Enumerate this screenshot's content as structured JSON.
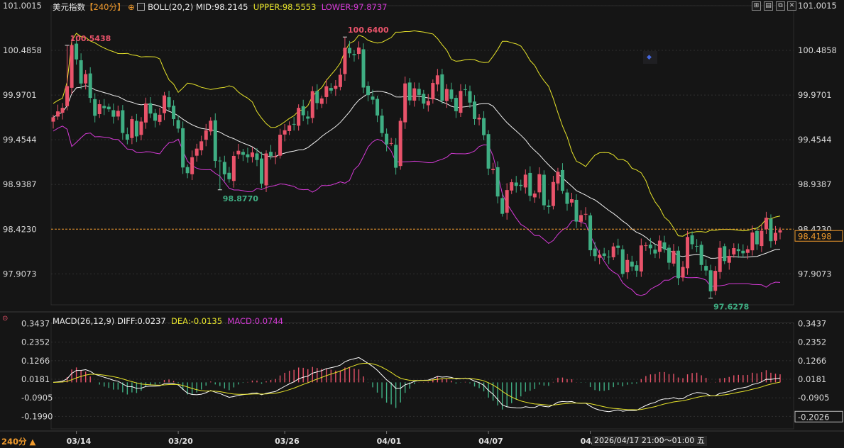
{
  "header": {
    "symbol": "美元指数",
    "period": "【240分】",
    "indicator": "BOLL(20,2)",
    "mid_label": "MID:98.2145",
    "upper_label": "UPPER:98.5553",
    "lower_label": "LOWER:97.8737"
  },
  "macd_header": {
    "name": "MACD(26,12,9)",
    "diff_label": "DIFF:0.0237",
    "dea_label": "DEA:-0.0135",
    "macd_label": "MACD:0.0744"
  },
  "footer": {
    "period_button": "240分",
    "crosshair_time": "2026/04/17 21:00～01:00 五"
  },
  "colors": {
    "up": "#e9536a",
    "down": "#3fae83",
    "mid": "#f0f0f0",
    "upper": "#e6e32a",
    "lower": "#d53ad6",
    "diff": "#ffffff",
    "dea": "#e6e32a",
    "price_line": "#f09a2c",
    "accent": "#f09a2c"
  },
  "chart_data": {
    "type": "candlestick",
    "price_axis": {
      "ticks": [
        "101.0015",
        "100.4858",
        "99.9701",
        "99.4544",
        "98.9387",
        "98.4230",
        "97.9073"
      ],
      "range": [
        97.55,
        101.0015
      ]
    },
    "current_price": "98.4198",
    "reference_price": 98.423,
    "date_labels": [
      "03/14",
      "03/20",
      "03/26",
      "04/01",
      "04/07",
      "04/"
    ],
    "annotations": [
      {
        "text": "100.5438",
        "value": 100.5438,
        "index": 3,
        "kind": "high"
      },
      {
        "text": "98.8770",
        "value": 98.877,
        "index": 36,
        "kind": "low"
      },
      {
        "text": "100.6400",
        "value": 100.64,
        "index": 63,
        "kind": "high"
      },
      {
        "text": "97.6278",
        "value": 97.6278,
        "index": 142,
        "kind": "low"
      }
    ],
    "macd_axis": {
      "ticks": [
        "0.3437",
        "0.2352",
        "0.1266",
        "0.0181",
        "-0.0905",
        "-0.1990"
      ],
      "range": [
        -0.272,
        0.35
      ]
    },
    "macd_current": "-0.2026",
    "path_anchors": [
      [
        0,
        99.62
      ],
      [
        2,
        99.85
      ],
      [
        4,
        100.5
      ],
      [
        7,
        100.05
      ],
      [
        9,
        99.85
      ],
      [
        12,
        99.8
      ],
      [
        15,
        99.6
      ],
      [
        18,
        99.55
      ],
      [
        20,
        99.78
      ],
      [
        22,
        99.75
      ],
      [
        25,
        99.9
      ],
      [
        27,
        99.45
      ],
      [
        29,
        99.1
      ],
      [
        32,
        99.45
      ],
      [
        34,
        99.6
      ],
      [
        37,
        98.97
      ],
      [
        40,
        99.3
      ],
      [
        42,
        99.35
      ],
      [
        45,
        99.05
      ],
      [
        48,
        99.4
      ],
      [
        51,
        99.6
      ],
      [
        54,
        99.8
      ],
      [
        57,
        99.9
      ],
      [
        60,
        100.05
      ],
      [
        62,
        100.25
      ],
      [
        64,
        100.5
      ],
      [
        66,
        100.4
      ],
      [
        68,
        100.0
      ],
      [
        70,
        99.7
      ],
      [
        72,
        99.4
      ],
      [
        74,
        99.3
      ],
      [
        76,
        99.98
      ],
      [
        78,
        100.0
      ],
      [
        80,
        99.92
      ],
      [
        83,
        100.1
      ],
      [
        85,
        99.95
      ],
      [
        87,
        99.92
      ],
      [
        89,
        99.98
      ],
      [
        91,
        99.75
      ],
      [
        93,
        99.55
      ],
      [
        95,
        98.95
      ],
      [
        97,
        98.65
      ],
      [
        99,
        99.0
      ],
      [
        101,
        98.95
      ],
      [
        103,
        98.85
      ],
      [
        105,
        98.95
      ],
      [
        107,
        98.7
      ],
      [
        109,
        99.05
      ],
      [
        111,
        98.75
      ],
      [
        113,
        98.65
      ],
      [
        115,
        98.45
      ],
      [
        117,
        98.1
      ],
      [
        119,
        98.15
      ],
      [
        121,
        98.15
      ],
      [
        123,
        98.05
      ],
      [
        125,
        97.98
      ],
      [
        127,
        98.15
      ],
      [
        129,
        98.2
      ],
      [
        131,
        98.25
      ],
      [
        133,
        98.15
      ],
      [
        135,
        97.85
      ],
      [
        137,
        98.3
      ],
      [
        139,
        98.25
      ],
      [
        141,
        97.8
      ],
      [
        142,
        97.75
      ],
      [
        143,
        98.05
      ],
      [
        145,
        98.15
      ],
      [
        147,
        98.1
      ],
      [
        150,
        98.25
      ],
      [
        152,
        98.35
      ],
      [
        154,
        98.4
      ]
    ]
  }
}
